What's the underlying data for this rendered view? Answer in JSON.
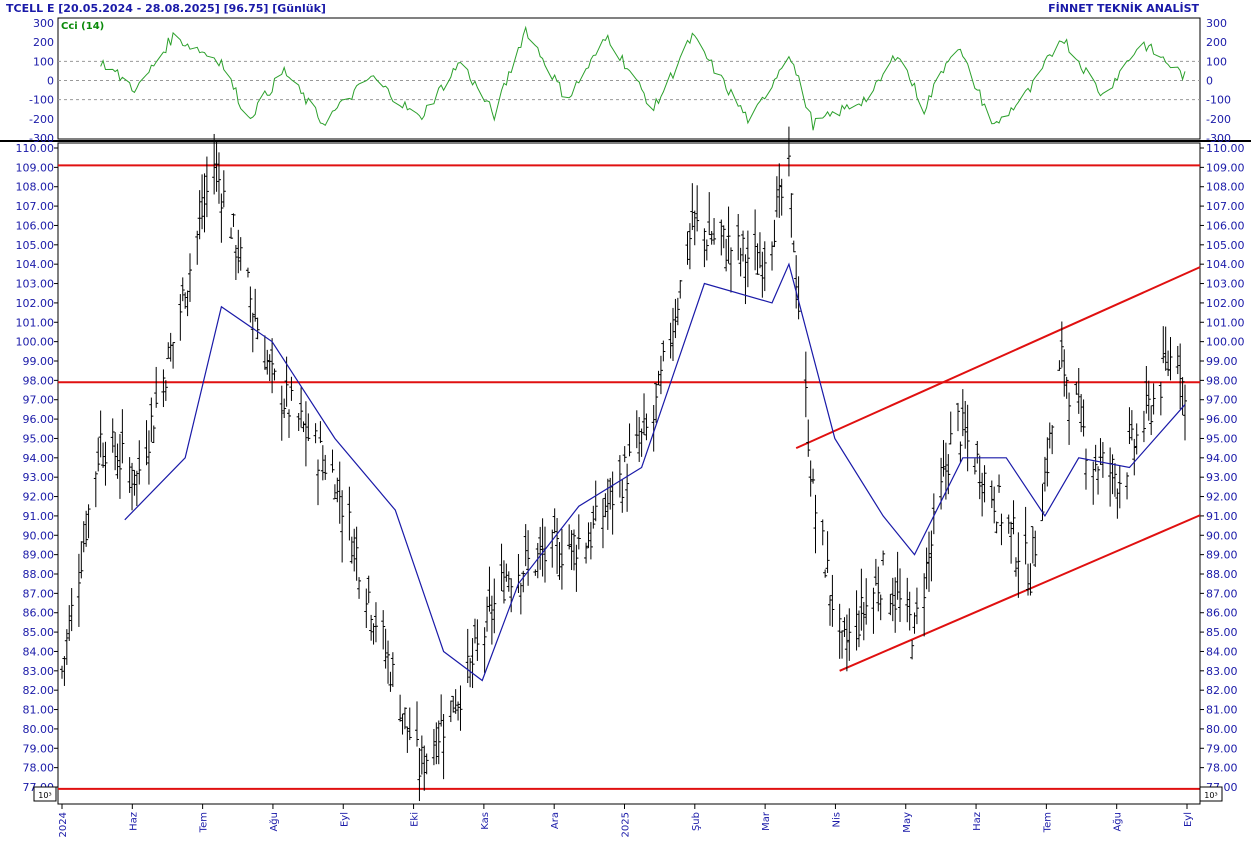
{
  "header": {
    "left_title": "TCELL E  [20.05.2024 - 28.08.2025]  [96.75]  [Günlük]",
    "right_title": "FİNNET TEKNİK ANALİST"
  },
  "cci_panel": {
    "label": "Cci (14)",
    "y_ticks": [
      "300",
      "200",
      "100",
      "0",
      "-100",
      "-200",
      "-300"
    ],
    "line_color": "#2ca02c"
  },
  "price_panel": {
    "y_ticks": [
      "110.00",
      "109.00",
      "108.00",
      "107.00",
      "106.00",
      "105.00",
      "104.00",
      "103.00",
      "102.00",
      "101.00",
      "100.00",
      "99.00",
      "98.00",
      "97.00",
      "96.00",
      "95.00",
      "94.00",
      "93.00",
      "92.00",
      "91.00",
      "90.00",
      "89.00",
      "88.00",
      "87.00",
      "86.00",
      "85.00",
      "84.00",
      "83.00",
      "82.00",
      "81.00",
      "80.00",
      "79.00",
      "78.00",
      "77.00"
    ],
    "scale_badge": "10^3",
    "bar_color": "#000000",
    "ma_color": "#1a1aa8",
    "level_color": "#e01010"
  },
  "x_axis": {
    "labels": [
      "2024",
      "Haz",
      "Tem",
      "Ağu",
      "Eyl",
      "Eki",
      "Kas",
      "Ara",
      "2025",
      "Şub",
      "Mar",
      "Nis",
      "May",
      "Haz",
      "Tem",
      "Ağu",
      "Eyl"
    ]
  },
  "chart_data": {
    "type": "ohlc",
    "symbol": "TCELL E",
    "date_range": [
      "20.05.2024",
      "28.08.2025"
    ],
    "last": 96.75,
    "period": "Günlük",
    "ylim": [
      77,
      110
    ],
    "cci_ylim": [
      -300,
      300
    ],
    "horizontal_levels": [
      109.1,
      97.9,
      76.9
    ],
    "trend_channel": [
      {
        "from": [
          "2025-03-20",
          94.5
        ],
        "to": [
          "2025-08-28",
          103.5
        ]
      },
      {
        "from": [
          "2025-04-07",
          83.0
        ],
        "to": [
          "2025-08-28",
          90.7
        ]
      }
    ],
    "price_key_points": [
      {
        "date": "2024-05-20",
        "close": 83
      },
      {
        "date": "2024-06-05",
        "close": 95
      },
      {
        "date": "2024-06-20",
        "close": 93
      },
      {
        "date": "2024-07-05",
        "close": 100
      },
      {
        "date": "2024-07-22",
        "close": 109.3
      },
      {
        "date": "2024-08-15",
        "close": 98
      },
      {
        "date": "2024-09-10",
        "close": 93
      },
      {
        "date": "2024-10-15",
        "close": 78
      },
      {
        "date": "2024-11-05",
        "close": 83
      },
      {
        "date": "2024-11-20",
        "close": 88
      },
      {
        "date": "2024-12-25",
        "close": 90
      },
      {
        "date": "2025-01-20",
        "close": 96
      },
      {
        "date": "2025-02-05",
        "close": 106
      },
      {
        "date": "2025-03-05",
        "close": 104
      },
      {
        "date": "2025-03-17",
        "close": 108.5
      },
      {
        "date": "2025-03-27",
        "close": 92
      },
      {
        "date": "2025-04-08",
        "close": 84
      },
      {
        "date": "2025-04-25",
        "close": 88
      },
      {
        "date": "2025-05-08",
        "close": 85
      },
      {
        "date": "2025-05-25",
        "close": 96
      },
      {
        "date": "2025-06-10",
        "close": 92
      },
      {
        "date": "2025-06-25",
        "close": 88
      },
      {
        "date": "2025-07-08",
        "close": 99
      },
      {
        "date": "2025-07-20",
        "close": 94
      },
      {
        "date": "2025-08-01",
        "close": 93
      },
      {
        "date": "2025-08-15",
        "close": 97
      },
      {
        "date": "2025-08-25",
        "close": 100
      },
      {
        "date": "2025-08-28",
        "close": 96.75
      }
    ],
    "ma_key_points": [
      {
        "date": "2024-06-15",
        "value": 90.8
      },
      {
        "date": "2024-07-10",
        "value": 94
      },
      {
        "date": "2024-07-25",
        "value": 101.8
      },
      {
        "date": "2024-08-15",
        "value": 100
      },
      {
        "date": "2024-09-10",
        "value": 95
      },
      {
        "date": "2024-10-05",
        "value": 91.3
      },
      {
        "date": "2024-10-25",
        "value": 84
      },
      {
        "date": "2024-11-10",
        "value": 82.5
      },
      {
        "date": "2024-11-25",
        "value": 87.5
      },
      {
        "date": "2024-12-20",
        "value": 91.5
      },
      {
        "date": "2025-01-15",
        "value": 93.5
      },
      {
        "date": "2025-02-10",
        "value": 103
      },
      {
        "date": "2025-03-10",
        "value": 102
      },
      {
        "date": "2025-03-17",
        "value": 104
      },
      {
        "date": "2025-04-05",
        "value": 95
      },
      {
        "date": "2025-04-25",
        "value": 91
      },
      {
        "date": "2025-05-08",
        "value": 89
      },
      {
        "date": "2025-05-28",
        "value": 94
      },
      {
        "date": "2025-06-15",
        "value": 94
      },
      {
        "date": "2025-07-01",
        "value": 91
      },
      {
        "date": "2025-07-15",
        "value": 94
      },
      {
        "date": "2025-08-05",
        "value": 93.5
      },
      {
        "date": "2025-08-28",
        "value": 96.75
      }
    ],
    "cci_key_points": [
      {
        "date": "2024-06-05",
        "value": 100
      },
      {
        "date": "2024-06-20",
        "value": -50
      },
      {
        "date": "2024-07-05",
        "value": 230
      },
      {
        "date": "2024-07-25",
        "value": 100
      },
      {
        "date": "2024-08-05",
        "value": -200
      },
      {
        "date": "2024-08-20",
        "value": 50
      },
      {
        "date": "2024-09-05",
        "value": -220
      },
      {
        "date": "2024-09-25",
        "value": 20
      },
      {
        "date": "2024-10-15",
        "value": -200
      },
      {
        "date": "2024-11-01",
        "value": 100
      },
      {
        "date": "2024-11-15",
        "value": -180
      },
      {
        "date": "2024-11-28",
        "value": 270
      },
      {
        "date": "2024-12-15",
        "value": -100
      },
      {
        "date": "2025-01-01",
        "value": 230
      },
      {
        "date": "2025-01-20",
        "value": -150
      },
      {
        "date": "2025-02-05",
        "value": 230
      },
      {
        "date": "2025-03-01",
        "value": -220
      },
      {
        "date": "2025-03-17",
        "value": 150
      },
      {
        "date": "2025-03-27",
        "value": -230
      },
      {
        "date": "2025-04-20",
        "value": -80
      },
      {
        "date": "2025-05-01",
        "value": 150
      },
      {
        "date": "2025-05-12",
        "value": -150
      },
      {
        "date": "2025-05-25",
        "value": 200
      },
      {
        "date": "2025-06-10",
        "value": -240
      },
      {
        "date": "2025-06-25",
        "value": -50
      },
      {
        "date": "2025-07-08",
        "value": 230
      },
      {
        "date": "2025-07-25",
        "value": -80
      },
      {
        "date": "2025-08-10",
        "value": 200
      },
      {
        "date": "2025-08-28",
        "value": 20
      }
    ]
  }
}
